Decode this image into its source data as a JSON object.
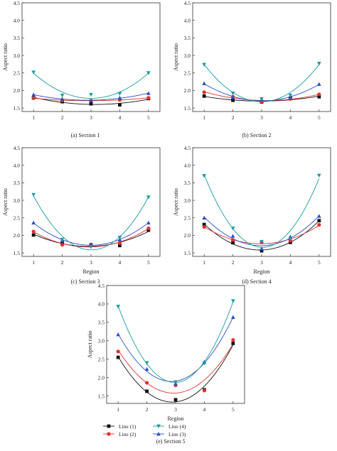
{
  "colors": {
    "line1": "#111111",
    "line2": "#e03131",
    "line3": "#2b4cc4",
    "line4": "#1a9aa0"
  },
  "series_meta": [
    {
      "key": "line1",
      "name": "Line (1)",
      "marker": "square"
    },
    {
      "key": "line2",
      "name": "Line (2)",
      "marker": "circle"
    },
    {
      "key": "line3",
      "name": "Line (3)",
      "marker": "triangle-up"
    },
    {
      "key": "line4",
      "name": "Line (4)",
      "marker": "triangle-down"
    }
  ],
  "legend_order": [
    "line1",
    "line4",
    "line2",
    "line3"
  ],
  "chart_data": [
    {
      "type": "scatter",
      "title": "",
      "caption": "(a)  Section 1",
      "xlabel": "",
      "ylabel": "Aspect ratio",
      "xlim": [
        0.6,
        5.4
      ],
      "ylim": [
        1.4,
        4.5
      ],
      "xticks": [
        1,
        2,
        3,
        4,
        5
      ],
      "yticks": [
        1.5,
        2.0,
        2.5,
        3.0,
        3.5,
        4.0,
        4.5
      ],
      "x": [
        1,
        2,
        3,
        4,
        5
      ],
      "fit": "quadratic",
      "grid": false,
      "series": [
        {
          "key": "line1",
          "values": [
            1.79,
            1.68,
            1.62,
            1.59,
            1.77
          ]
        },
        {
          "key": "line2",
          "values": [
            1.78,
            1.72,
            1.71,
            1.73,
            1.79
          ]
        },
        {
          "key": "line3",
          "values": [
            1.88,
            1.76,
            1.71,
            1.79,
            1.92
          ]
        },
        {
          "key": "line4",
          "values": [
            2.52,
            1.86,
            1.88,
            1.91,
            2.5
          ]
        }
      ]
    },
    {
      "type": "scatter",
      "title": "",
      "caption": "(b)  Section 2",
      "xlabel": "",
      "ylabel": "Aspect ratio",
      "xlim": [
        0.6,
        5.4
      ],
      "ylim": [
        1.4,
        4.5
      ],
      "xticks": [
        1,
        2,
        3,
        4,
        5
      ],
      "yticks": [
        1.5,
        2.0,
        2.5,
        3.0,
        3.5,
        4.0,
        4.5
      ],
      "x": [
        1,
        2,
        3,
        4,
        5
      ],
      "fit": "quadratic",
      "grid": false,
      "series": [
        {
          "key": "line1",
          "values": [
            1.84,
            1.72,
            1.67,
            1.78,
            1.82
          ]
        },
        {
          "key": "line2",
          "values": [
            1.95,
            1.82,
            1.68,
            1.76,
            1.89
          ]
        },
        {
          "key": "line3",
          "values": [
            2.2,
            1.8,
            1.74,
            1.8,
            2.18
          ]
        },
        {
          "key": "line4",
          "values": [
            2.74,
            1.92,
            1.76,
            1.86,
            2.77
          ]
        }
      ]
    },
    {
      "type": "scatter",
      "title": "",
      "caption": "(c)  Section 3",
      "xlabel": "Region",
      "ylabel": "Aspect ratio",
      "xlim": [
        0.6,
        5.4
      ],
      "ylim": [
        1.4,
        4.5
      ],
      "xticks": [
        1,
        2,
        3,
        4,
        5
      ],
      "yticks": [
        1.5,
        2.0,
        2.5,
        3.0,
        3.5,
        4.0,
        4.5
      ],
      "x": [
        1,
        2,
        3,
        4,
        5
      ],
      "fit": "quadratic",
      "grid": false,
      "series": [
        {
          "key": "line1",
          "values": [
            2.01,
            1.8,
            1.73,
            1.71,
            2.15
          ]
        },
        {
          "key": "line2",
          "values": [
            2.11,
            1.73,
            1.72,
            1.78,
            2.2
          ]
        },
        {
          "key": "line3",
          "values": [
            2.36,
            1.85,
            1.74,
            1.88,
            2.36
          ]
        },
        {
          "key": "line4",
          "values": [
            3.16,
            1.88,
            1.67,
            1.94,
            3.09
          ]
        }
      ]
    },
    {
      "type": "scatter",
      "title": "",
      "caption": "(d)  Section 4",
      "xlabel": "Region",
      "ylabel": "Aspect ratio",
      "xlim": [
        0.6,
        5.4
      ],
      "ylim": [
        1.4,
        4.5
      ],
      "xticks": [
        1,
        2,
        3,
        4,
        5
      ],
      "yticks": [
        1.5,
        2.0,
        2.5,
        3.0,
        3.5,
        4.0,
        4.5
      ],
      "x": [
        1,
        2,
        3,
        4,
        5
      ],
      "fit": "quadratic",
      "grid": false,
      "series": [
        {
          "key": "line1",
          "values": [
            2.31,
            1.79,
            1.56,
            1.8,
            2.42
          ]
        },
        {
          "key": "line2",
          "values": [
            2.24,
            1.87,
            1.8,
            1.85,
            2.3
          ]
        },
        {
          "key": "line3",
          "values": [
            2.5,
            1.98,
            1.62,
            1.96,
            2.55
          ]
        },
        {
          "key": "line4",
          "values": [
            3.7,
            2.2,
            1.82,
            1.91,
            3.71
          ]
        }
      ]
    },
    {
      "type": "scatter",
      "title": "",
      "caption": "(e)  Section 5",
      "xlabel": "Region",
      "ylabel": "Aspect ratio",
      "xlim": [
        0.6,
        5.4
      ],
      "ylim": [
        1.3,
        4.5
      ],
      "xticks": [
        1,
        2,
        3,
        4,
        5
      ],
      "yticks": [
        1.5,
        2.0,
        2.5,
        3.0,
        3.5,
        4.0,
        4.5
      ],
      "x": [
        1,
        2,
        3,
        4,
        5
      ],
      "fit": "quadratic",
      "grid": false,
      "legend": "bottom-left",
      "series": [
        {
          "key": "line1",
          "values": [
            2.55,
            1.63,
            1.4,
            1.67,
            2.93
          ]
        },
        {
          "key": "line2",
          "values": [
            2.71,
            1.86,
            1.79,
            1.65,
            3.02
          ]
        },
        {
          "key": "line3",
          "values": [
            3.17,
            2.23,
            1.84,
            2.42,
            3.64
          ]
        },
        {
          "key": "line4",
          "values": [
            3.93,
            2.4,
            1.88,
            2.39,
            4.08
          ]
        }
      ]
    }
  ]
}
